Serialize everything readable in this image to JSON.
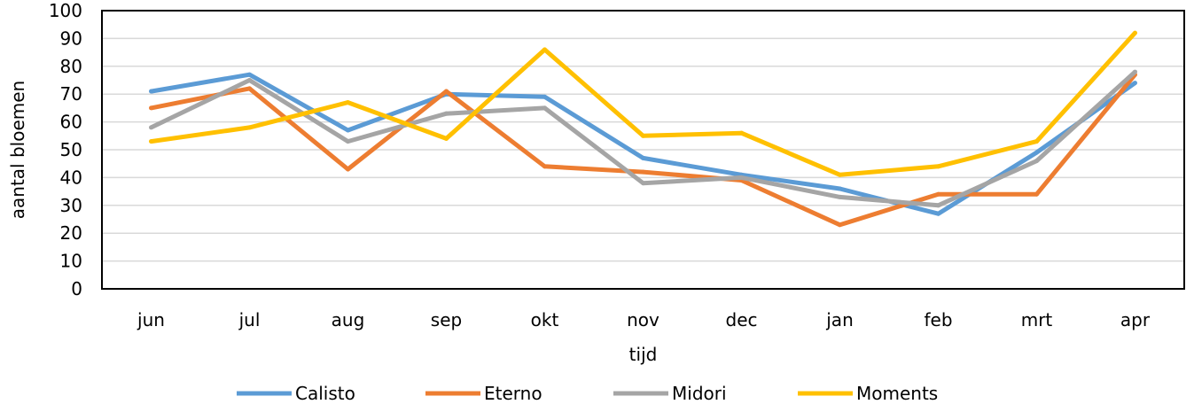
{
  "chart_data": {
    "type": "line",
    "title": "",
    "xlabel": "tijd",
    "ylabel": "aantal bloemen",
    "categories": [
      "jun",
      "jul",
      "aug",
      "sep",
      "okt",
      "nov",
      "dec",
      "jan",
      "feb",
      "mrt",
      "apr"
    ],
    "ylim": [
      0,
      100
    ],
    "yticks": [
      0,
      10,
      20,
      30,
      40,
      50,
      60,
      70,
      80,
      90,
      100
    ],
    "grid": true,
    "legend_position": "bottom",
    "series": [
      {
        "name": "Calisto",
        "color": "#5b9bd5",
        "values": [
          71,
          77,
          57,
          70,
          69,
          47,
          41,
          36,
          27,
          49,
          74
        ]
      },
      {
        "name": "Eterno",
        "color": "#ed7d31",
        "values": [
          65,
          72,
          43,
          71,
          44,
          42,
          39,
          23,
          34,
          34,
          77
        ]
      },
      {
        "name": "Midori",
        "color": "#a5a5a5",
        "values": [
          58,
          75,
          53,
          63,
          65,
          38,
          40,
          33,
          30,
          46,
          78
        ]
      },
      {
        "name": "Moments",
        "color": "#ffc000",
        "values": [
          53,
          58,
          67,
          54,
          86,
          55,
          56,
          41,
          44,
          53,
          92
        ]
      }
    ]
  }
}
